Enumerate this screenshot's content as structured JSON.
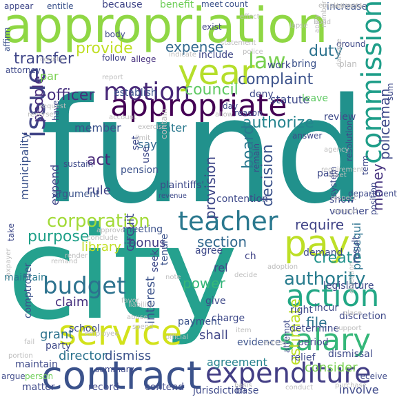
{
  "palette": {
    "dark_purple": "#440154",
    "indigo": "#3b528b",
    "blue": "#31688e",
    "teal": "#21918c",
    "green": "#35b779",
    "lime": "#6ece58",
    "yellow_green": "#b5de2b",
    "light_gray": "#bdbdbd"
  },
  "words": [
    {
      "text": "fund",
      "color": "#21918c"
    },
    {
      "text": "city",
      "color": "#25a18e"
    },
    {
      "text": "appropriation",
      "color": "#8fd744"
    },
    {
      "text": "contract",
      "color": "#3b528b"
    },
    {
      "text": "expenditure",
      "color": "#433e85"
    },
    {
      "text": "appropriate",
      "color": "#440154"
    },
    {
      "text": "year",
      "color": "#b5de2b"
    },
    {
      "text": "pay",
      "color": "#bddf26"
    },
    {
      "text": "salary",
      "color": "#35b779"
    },
    {
      "text": "service",
      "color": "#d2e21b"
    },
    {
      "text": "teacher",
      "color": "#2a788e"
    },
    {
      "text": "motion",
      "color": "#482878"
    },
    {
      "text": "action",
      "color": "#22a785"
    },
    {
      "text": "law",
      "color": "#7ad151"
    },
    {
      "text": "issue",
      "color": "#414487"
    },
    {
      "text": "commission",
      "color": "#1f9e89"
    },
    {
      "text": "budget",
      "color": "#2c728e"
    },
    {
      "text": "authority",
      "color": "#287c8e"
    },
    {
      "text": "provide",
      "color": "#c0df25"
    },
    {
      "text": "complaint",
      "color": "#3b528b"
    },
    {
      "text": "corporation",
      "color": "#a2da37"
    },
    {
      "text": "expense",
      "color": "#31688e"
    },
    {
      "text": "transfer",
      "color": "#404688"
    },
    {
      "text": "people",
      "color": "#472d7b"
    },
    {
      "text": "council",
      "color": "#5ec962"
    },
    {
      "text": "officer",
      "color": "#46307e"
    },
    {
      "text": "duty",
      "color": "#2c728e"
    },
    {
      "text": "authorize",
      "color": "#25838e"
    },
    {
      "text": "policeman",
      "color": "#3e4989"
    },
    {
      "text": "board",
      "color": "#2a788e"
    },
    {
      "text": "decision",
      "color": "#3b528b"
    },
    {
      "text": "money",
      "color": "#46337f"
    },
    {
      "text": "provision",
      "color": "#3f4788"
    },
    {
      "text": "section",
      "color": "#31688e"
    },
    {
      "text": "require",
      "color": "#414487"
    },
    {
      "text": "create",
      "color": "#20928c"
    },
    {
      "text": "purpose",
      "color": "#1fa088"
    },
    {
      "text": "library",
      "color": "#c2df23"
    },
    {
      "text": "bonus",
      "color": "#433e85"
    },
    {
      "text": "claim",
      "color": "#46307e"
    },
    {
      "text": "interest",
      "color": "#3b528b"
    },
    {
      "text": "power",
      "color": "#35b779"
    },
    {
      "text": "file",
      "color": "#2c728e"
    },
    {
      "text": "estimate",
      "color": "#bddf26"
    },
    {
      "text": "grant",
      "color": "#2c728e"
    },
    {
      "text": "shall",
      "color": "#404688"
    },
    {
      "text": "director",
      "color": "#2c728e"
    },
    {
      "text": "dismiss",
      "color": "#3b528b"
    },
    {
      "text": "agreement",
      "color": "#26828e"
    },
    {
      "text": "consider",
      "color": "#7ad151"
    },
    {
      "text": "involve",
      "color": "#3e4989"
    },
    {
      "text": "municipality",
      "color": "#3b528b"
    },
    {
      "text": "member",
      "color": "#3b528b"
    },
    {
      "text": "enter",
      "color": "#2a788e"
    },
    {
      "text": "act",
      "color": "#482878"
    },
    {
      "text": "expend",
      "color": "#404688"
    },
    {
      "text": "rule",
      "color": "#414487"
    },
    {
      "text": "say",
      "color": "#31688e"
    },
    {
      "text": "par",
      "color": "#7ad151"
    },
    {
      "text": "statute",
      "color": "#3e4989"
    },
    {
      "text": "circuit",
      "color": "#3e4989"
    },
    {
      "text": "prosequi",
      "color": "#2c728e"
    },
    {
      "text": "review",
      "color": "#3e4989"
    },
    {
      "text": "because",
      "color": "#404688"
    },
    {
      "text": "benefit",
      "color": "#6ece58"
    },
    {
      "text": "increase",
      "color": "#3b528b"
    },
    {
      "text": "include",
      "color": "#3f4788"
    },
    {
      "text": "work",
      "color": "#3e4989"
    },
    {
      "text": "bring",
      "color": "#3b528b"
    },
    {
      "text": "follow",
      "color": "#414487"
    },
    {
      "text": "allege",
      "color": "#46307e"
    },
    {
      "text": "appear",
      "color": "#3f4788"
    },
    {
      "text": "entitle",
      "color": "#3b528b"
    },
    {
      "text": "exist",
      "color": "#414487"
    },
    {
      "text": "count",
      "color": "#3b528b"
    },
    {
      "text": "affirm",
      "color": "#3b528b"
    },
    {
      "text": "meet",
      "color": "#3b528b"
    },
    {
      "text": "body",
      "color": "#3e4989"
    },
    {
      "text": "ground",
      "color": "#3e4989"
    },
    {
      "text": "leave",
      "color": "#5ec962"
    },
    {
      "text": "establish",
      "color": "#3b528b"
    },
    {
      "text": "meeting",
      "color": "#3b528b"
    },
    {
      "text": "pension",
      "color": "#3b528b"
    },
    {
      "text": "argument",
      "color": "#3b528b"
    },
    {
      "text": "comptroller",
      "color": "#3b528b"
    },
    {
      "text": "payment",
      "color": "#3b528b"
    },
    {
      "text": "seek",
      "color": "#3e4989"
    },
    {
      "text": "tenure",
      "color": "#3b528b"
    },
    {
      "text": "give",
      "color": "#3e4989"
    },
    {
      "text": "charge",
      "color": "#3e4989"
    },
    {
      "text": "evidence",
      "color": "#3b528b"
    },
    {
      "text": "party",
      "color": "#3e4989"
    },
    {
      "text": "maintain",
      "color": "#3e4989"
    },
    {
      "text": "argue",
      "color": "#3e4989"
    },
    {
      "text": "person",
      "color": "#6ece58"
    },
    {
      "text": "matter",
      "color": "#3e4989"
    },
    {
      "text": "record",
      "color": "#3e4989"
    },
    {
      "text": "contend",
      "color": "#3e4989"
    },
    {
      "text": "jurisdiction",
      "color": "#3e4989"
    },
    {
      "text": "base",
      "color": "#3e4989"
    },
    {
      "text": "relief",
      "color": "#3e4989"
    },
    {
      "text": "dismissal",
      "color": "#3e4989"
    },
    {
      "text": "attempt",
      "color": "#3e4989"
    },
    {
      "text": "determine",
      "color": "#3e4989"
    },
    {
      "text": "discretion",
      "color": "#3e4989"
    },
    {
      "text": "demand",
      "color": "#3e4989"
    },
    {
      "text": "receive",
      "color": "#3e4989"
    },
    {
      "text": "period",
      "color": "#3e4989"
    },
    {
      "text": "right",
      "color": "#3e4989"
    },
    {
      "text": "incur",
      "color": "#3e4989"
    },
    {
      "text": "legislature",
      "color": "#3e4989"
    },
    {
      "text": "ch",
      "color": "#414487"
    },
    {
      "text": "agree",
      "color": "#3e4989"
    },
    {
      "text": "rel",
      "color": "#404688"
    },
    {
      "text": "summary",
      "color": "#3e4989"
    },
    {
      "text": "maintain",
      "color": "#2a788e"
    },
    {
      "text": "school",
      "color": "#3e4989"
    },
    {
      "text": "take",
      "color": "#3e4989"
    },
    {
      "text": "result",
      "color": "#3e4989"
    },
    {
      "text": "sum",
      "color": "#3e4989"
    },
    {
      "text": "pass",
      "color": "#3e4989"
    },
    {
      "text": "show",
      "color": "#3e4989"
    },
    {
      "text": "term",
      "color": "#3e4989"
    },
    {
      "text": "department",
      "color": "#3e4989"
    },
    {
      "text": "voucher",
      "color": "#3e4989"
    },
    {
      "text": "resolution",
      "color": "#3e4989"
    },
    {
      "text": "system",
      "color": "#3e4989"
    },
    {
      "text": "position",
      "color": "#3e4989"
    },
    {
      "text": "set",
      "color": "#3e4989"
    },
    {
      "text": "use",
      "color": "#3e4989"
    },
    {
      "text": "plaintiffs'",
      "color": "#3e4989"
    },
    {
      "text": "contention",
      "color": "#3e4989"
    },
    {
      "text": "remain",
      "color": "#3e4989"
    },
    {
      "text": "answer",
      "color": "#3e4989"
    },
    {
      "text": "reason",
      "color": "#3e4989"
    },
    {
      "text": "day",
      "color": "#3e4989"
    },
    {
      "text": "deny",
      "color": "#3e4989"
    },
    {
      "text": "attorney",
      "color": "#3e4989"
    },
    {
      "text": "have",
      "color": "#3e4989"
    },
    {
      "text": "sustain",
      "color": "#3e4989"
    },
    {
      "text": "contain",
      "color": "#bdbdbd"
    },
    {
      "text": "plan",
      "color": "#bdbdbd"
    },
    {
      "text": "employment",
      "color": "#bdbdbd"
    },
    {
      "text": "obligation",
      "color": "#bdbdbd"
    },
    {
      "text": "apply",
      "color": "#bdbdbd"
    },
    {
      "text": "number",
      "color": "#bdbdbd"
    },
    {
      "text": "police",
      "color": "#bdbdbd"
    },
    {
      "text": "indicate",
      "color": "#bdbdbd"
    },
    {
      "text": "report",
      "color": "#bdbdbd"
    },
    {
      "text": "statement",
      "color": "#bdbdbd"
    },
    {
      "text": "effect",
      "color": "#bdbdbd"
    },
    {
      "text": "county",
      "color": "#bdbdbd"
    },
    {
      "text": "request",
      "color": "#bdbdbd"
    },
    {
      "text": "account",
      "color": "#bdbdbd"
    },
    {
      "text": "exercise",
      "color": "#bdbdbd"
    },
    {
      "text": "limit",
      "color": "#bdbdbd"
    },
    {
      "text": "allow",
      "color": "#bdbdbd"
    },
    {
      "text": "agency",
      "color": "#bdbdbd"
    },
    {
      "text": "asset",
      "color": "#bdbdbd"
    },
    {
      "text": "requirement",
      "color": "#bdbdbd"
    },
    {
      "text": "respect",
      "color": "#bdbdbd"
    },
    {
      "text": "amend",
      "color": "#bdbdbd"
    },
    {
      "text": "approve",
      "color": "#bdbdbd"
    },
    {
      "text": "conclude",
      "color": "#bdbdbd"
    },
    {
      "text": "render",
      "color": "#bdbdbd"
    },
    {
      "text": "remand",
      "color": "#bdbdbd"
    },
    {
      "text": "taxpayer",
      "color": "#bdbdbd"
    },
    {
      "text": "liability",
      "color": "#bdbdbd"
    },
    {
      "text": "abuse",
      "color": "#bdbdbd"
    },
    {
      "text": "favor",
      "color": "#bdbdbd"
    },
    {
      "text": "spend",
      "color": "#bdbdbd"
    },
    {
      "text": "employee",
      "color": "#bdbdbd"
    },
    {
      "text": "official",
      "color": "#bdbdbd"
    },
    {
      "text": "decide",
      "color": "#bdbdbd"
    },
    {
      "text": "excess",
      "color": "#bdbdbd"
    },
    {
      "text": "purchase",
      "color": "#bdbdbd"
    },
    {
      "text": "conduct",
      "color": "#bdbdbd"
    },
    {
      "text": "objection",
      "color": "#bdbdbd"
    },
    {
      "text": "portion",
      "color": "#bdbdbd"
    },
    {
      "text": "fail",
      "color": "#bdbdbd"
    },
    {
      "text": "basis",
      "color": "#bdbdbd"
    },
    {
      "text": "item",
      "color": "#bdbdbd"
    },
    {
      "text": "revenue",
      "color": "#3e4989"
    },
    {
      "text": "damage",
      "color": "#bdbdbd"
    },
    {
      "text": "place",
      "color": "#bdbdbd"
    },
    {
      "text": "note",
      "color": "#bdbdbd"
    },
    {
      "text": "adoption",
      "color": "#bdbdbd"
    },
    {
      "text": "lapse",
      "color": "#bdbdbd"
    },
    {
      "text": "bond",
      "color": "#bdbdbd"
    },
    {
      "text": "reverse",
      "color": "#bdbdbd"
    },
    {
      "text": "support",
      "color": "#bdbdbd"
    }
  ]
}
